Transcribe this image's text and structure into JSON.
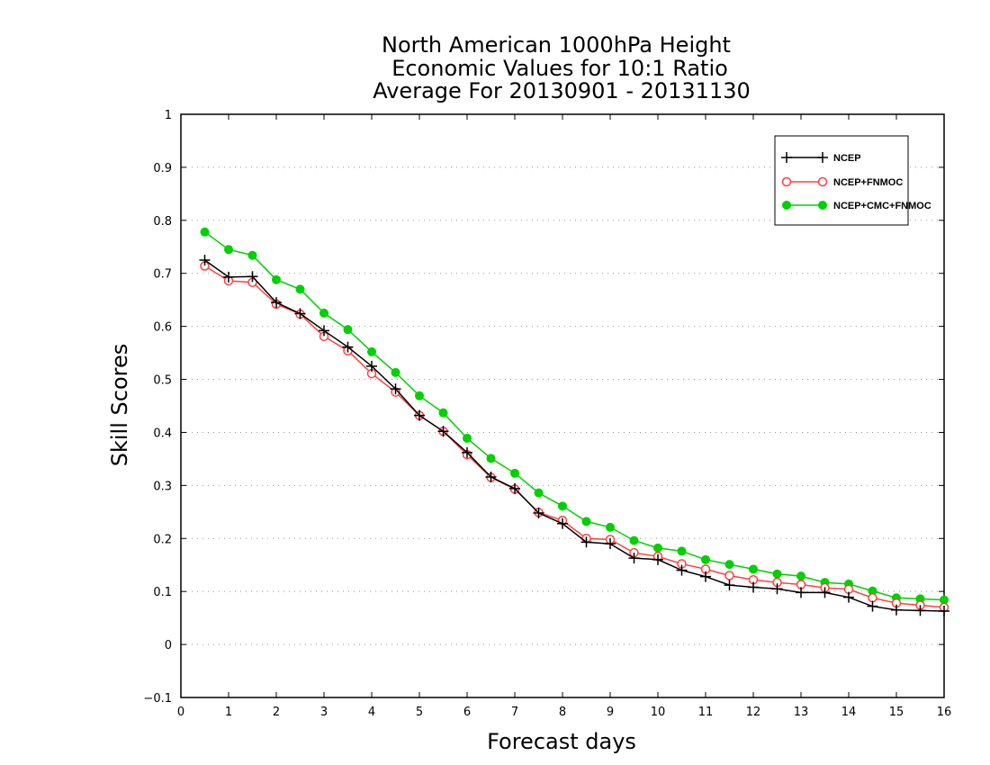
{
  "chart_data": {
    "type": "line",
    "title": [
      "North American 1000hPa Height",
      "Economic Values for 10:1 Ratio",
      "Average For 20130901 - 20131130"
    ],
    "xlabel": "Forecast days",
    "ylabel": "Skill Scores",
    "xlim": [
      0,
      16
    ],
    "ylim": [
      -0.1,
      1
    ],
    "xticks": [
      "0",
      "1",
      "2",
      "3",
      "4",
      "5",
      "6",
      "7",
      "8",
      "9",
      "10",
      "11",
      "12",
      "13",
      "14",
      "15",
      "16"
    ],
    "yticks": [
      "−0.1",
      "0",
      "0.1",
      "0.2",
      "0.3",
      "0.4",
      "0.5",
      "0.6",
      "0.7",
      "0.8",
      "0.9",
      "1"
    ],
    "grid": "horizontal dotted",
    "legend_position": "top-right",
    "x": [
      0.5,
      1,
      1.5,
      2,
      2.5,
      3,
      3.5,
      4,
      4.5,
      5,
      5.5,
      6,
      6.5,
      7,
      7.5,
      8,
      8.5,
      9,
      9.5,
      10,
      10.5,
      11,
      11.5,
      12,
      12.5,
      13,
      13.5,
      14,
      14.5,
      15,
      15.5,
      16
    ],
    "series": [
      {
        "name": "NCEP",
        "color": "#000000",
        "marker": "plus",
        "values": [
          0.725,
          0.693,
          0.694,
          0.645,
          0.624,
          0.592,
          0.561,
          0.525,
          0.482,
          0.432,
          0.402,
          0.362,
          0.316,
          0.294,
          0.248,
          0.228,
          0.193,
          0.19,
          0.163,
          0.16,
          0.14,
          0.128,
          0.112,
          0.108,
          0.105,
          0.098,
          0.098,
          0.089,
          0.072,
          0.065,
          0.064,
          0.063
        ]
      },
      {
        "name": "NCEP+FNMOC",
        "color": "#ff4040",
        "marker": "open-circle",
        "values": [
          0.714,
          0.686,
          0.683,
          0.642,
          0.623,
          0.581,
          0.554,
          0.511,
          0.476,
          0.432,
          0.402,
          0.358,
          0.315,
          0.293,
          0.249,
          0.234,
          0.2,
          0.198,
          0.173,
          0.166,
          0.152,
          0.142,
          0.13,
          0.122,
          0.117,
          0.113,
          0.107,
          0.104,
          0.088,
          0.078,
          0.074,
          0.07
        ]
      },
      {
        "name": "NCEP+CMC+FNMOC",
        "color": "#00d000",
        "marker": "filled-circle",
        "values": [
          0.778,
          0.745,
          0.734,
          0.688,
          0.67,
          0.625,
          0.594,
          0.552,
          0.513,
          0.469,
          0.437,
          0.389,
          0.351,
          0.323,
          0.286,
          0.261,
          0.232,
          0.221,
          0.196,
          0.182,
          0.176,
          0.16,
          0.151,
          0.142,
          0.133,
          0.129,
          0.117,
          0.114,
          0.101,
          0.088,
          0.086,
          0.084
        ]
      }
    ]
  }
}
